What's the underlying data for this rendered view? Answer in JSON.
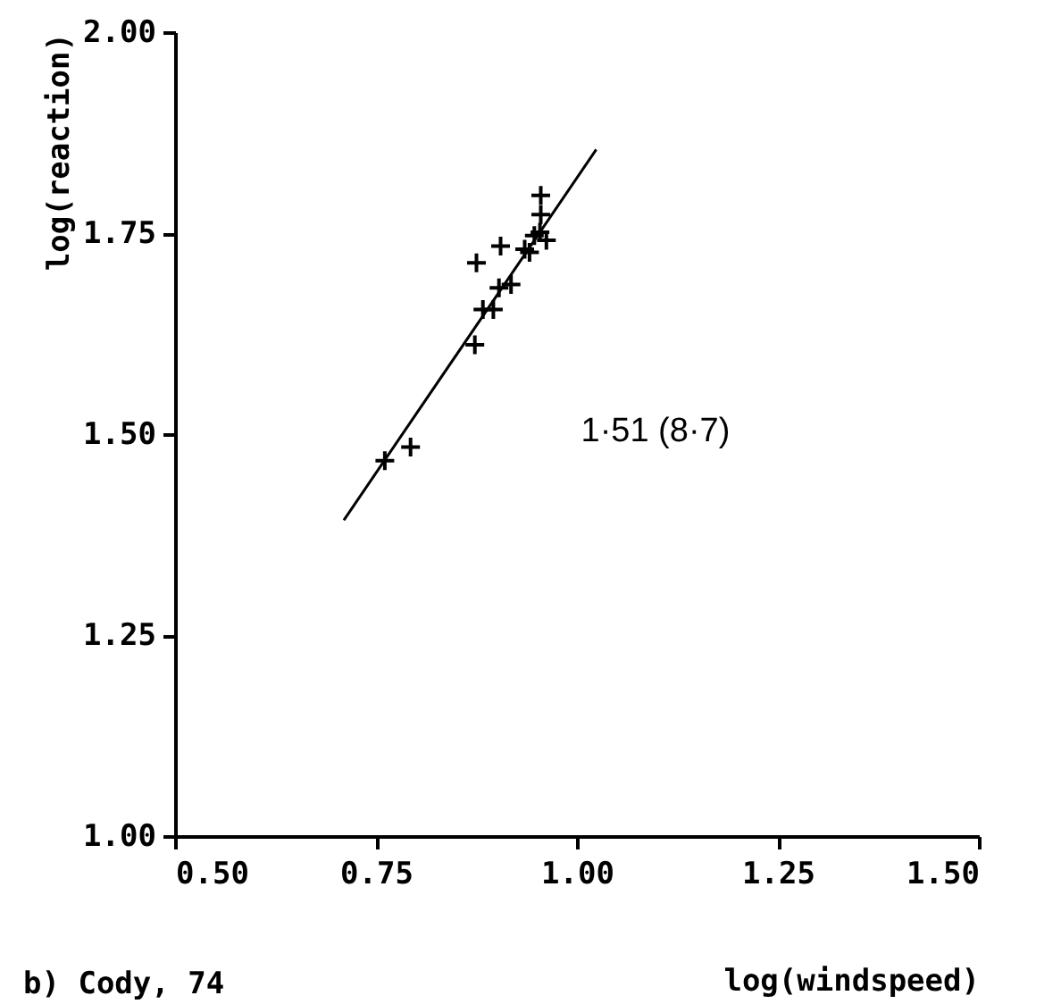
{
  "chart_data": {
    "type": "scatter",
    "xlabel": "log(windspeed)",
    "ylabel": "log(reaction)",
    "annotations": [
      "1·51 (8·7)",
      "b) Cody, 74"
    ],
    "series": [
      {
        "color": "#000000",
        "marker": "cross",
        "x": [
          0.761,
          0.793,
          0.873,
          0.875,
          0.883,
          0.896,
          0.903,
          0.918,
          0.905,
          0.935,
          0.941,
          0.947,
          0.955,
          0.955,
          0.962,
          0.954
        ],
        "values": [
          1.467,
          1.484,
          1.611,
          1.713,
          1.655,
          1.655,
          1.682,
          1.686,
          1.734,
          1.73,
          1.726,
          1.747,
          1.797,
          1.773,
          1.741,
          1.751
        ]
      },
      {
        "type": "line",
        "color": "#000000",
        "line_style": "solid",
        "marker": "none",
        "x": [
          0.71,
          1.024
        ],
        "values": [
          1.393,
          1.854
        ]
      }
    ],
    "xlim": [
      0.5,
      1.5
    ],
    "ylim": [
      1.0,
      2.0
    ],
    "xticks": [
      {
        "value": 0.5,
        "label": "0.50"
      },
      {
        "value": 0.75,
        "label": "0.75"
      },
      {
        "value": 1.0,
        "label": "1.00"
      },
      {
        "value": 1.25,
        "label": "1.25"
      },
      {
        "value": 1.5,
        "label": "1.50"
      }
    ],
    "yticks": [
      {
        "value": 1.0,
        "label": "1.00"
      },
      {
        "value": 1.25,
        "label": "1.25"
      },
      {
        "value": 1.5,
        "label": "1.50"
      },
      {
        "value": 1.75,
        "label": "1.75"
      },
      {
        "value": 2.0,
        "label": "2.00"
      }
    ],
    "grid": false
  }
}
